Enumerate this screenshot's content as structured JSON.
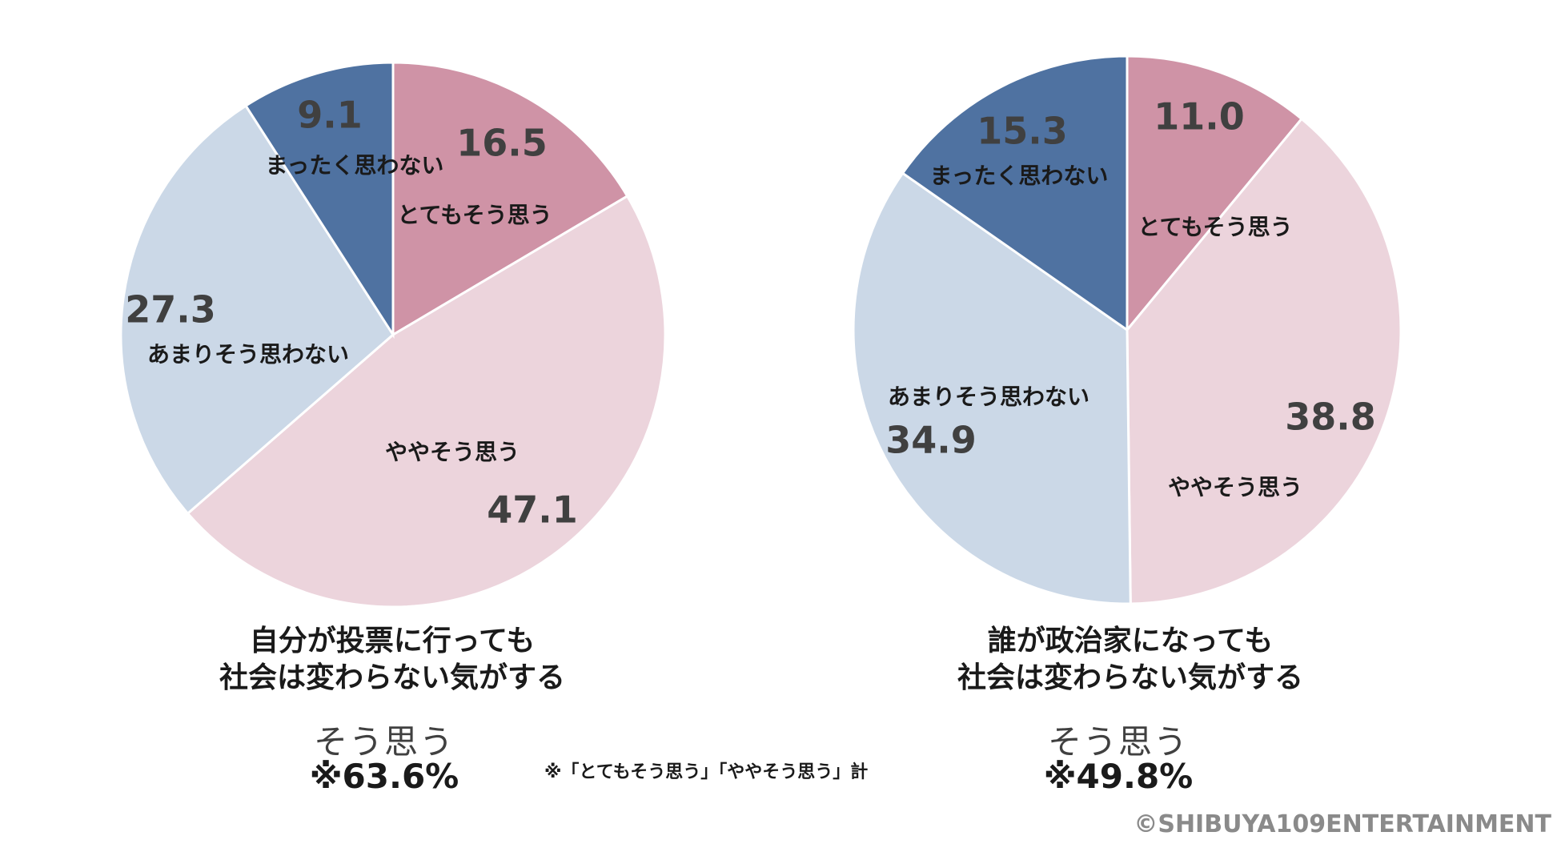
{
  "chart_data": [
    {
      "type": "pie",
      "title_lines": [
        "自分が投票に行っても",
        "社会は変わらない気がする"
      ],
      "slices": [
        {
          "label": "とてもそう思う",
          "value": 16.5,
          "value_text": "16.5",
          "color": "#cf93a6"
        },
        {
          "label": "ややそう思う",
          "value": 47.1,
          "value_text": "47.1",
          "color": "#ecd4dc"
        },
        {
          "label": "あまりそう思わない",
          "value": 27.3,
          "value_text": "27.3",
          "color": "#cbd8e7"
        },
        {
          "label": "まったく思わない",
          "value": 9.1,
          "value_text": "9.1",
          "color": "#4f72a1"
        }
      ],
      "summary_label": "そう思う",
      "summary_value": "※63.6%"
    },
    {
      "type": "pie",
      "title_lines": [
        "誰が政治家になっても",
        "社会は変わらない気がする"
      ],
      "slices": [
        {
          "label": "とてもそう思う",
          "value": 11.0,
          "value_text": "11.0",
          "color": "#cf93a6"
        },
        {
          "label": "ややそう思う",
          "value": 38.8,
          "value_text": "38.8",
          "color": "#ecd4dc"
        },
        {
          "label": "あまりそう思わない",
          "value": 34.9,
          "value_text": "34.9",
          "color": "#cbd8e7"
        },
        {
          "label": "まったく思わない",
          "value": 15.3,
          "value_text": "15.3",
          "color": "#4f72a1"
        }
      ],
      "summary_label": "そう思う",
      "summary_value": "※49.8%"
    }
  ],
  "footnote": "※「とてもそう思う」「ややそう思う」計",
  "copyright": "©SHIBUYA109ENTERTAINMENT"
}
